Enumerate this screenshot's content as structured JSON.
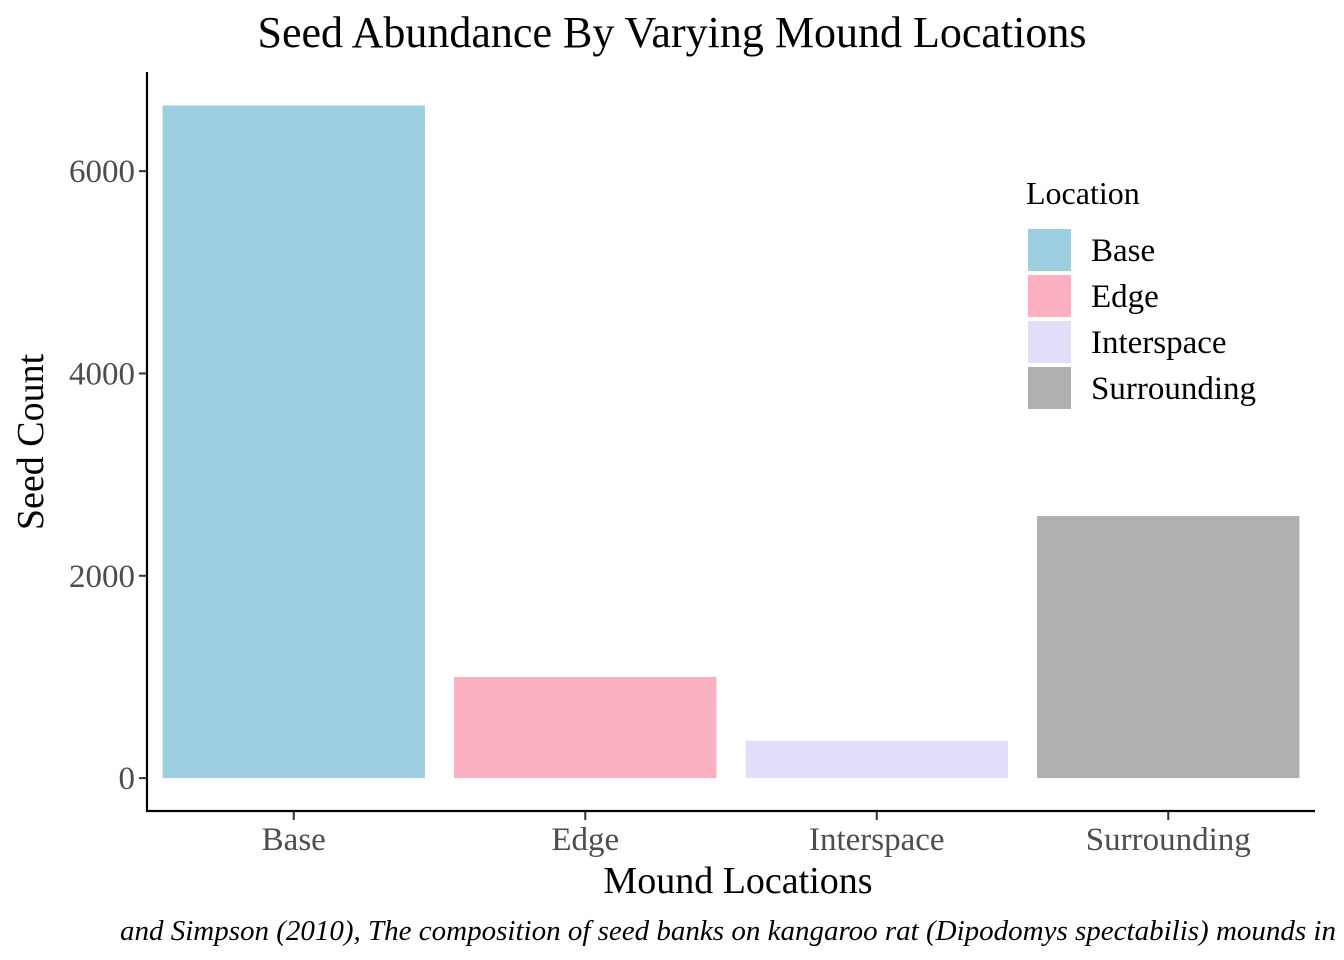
{
  "chart_data": {
    "type": "bar",
    "title": "Seed Abundance By Varying Mound Locations",
    "xlabel": "Mound Locations",
    "ylabel": "Seed Count",
    "caption": "and Simpson (2010), The composition of seed banks on kangaroo rat (Dipodomys spectabilis) mounds in",
    "categories": [
      "Base",
      "Edge",
      "Interspace",
      "Surrounding"
    ],
    "values": [
      6650,
      1000,
      370,
      2590
    ],
    "colors": [
      "#9ECFE0",
      "#FBB0C1",
      "#E0DEF8",
      "#B0B0B0"
    ],
    "yticks": [
      0,
      2000,
      4000,
      6000
    ],
    "ylim": [
      -325,
      6980
    ],
    "grid": false,
    "legend": {
      "title": "Location",
      "placement": "top-right",
      "items": [
        "Base",
        "Edge",
        "Interspace",
        "Surrounding"
      ]
    }
  }
}
